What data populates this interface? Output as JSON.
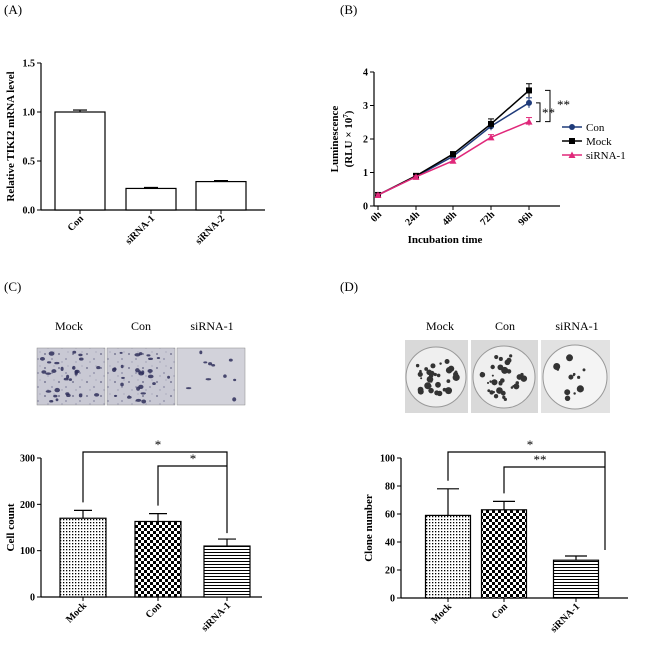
{
  "panels": {
    "A": "(A)",
    "B": "(B)",
    "C": "(C)",
    "D": "(D)"
  },
  "photo_c": {
    "labels": [
      "Mock",
      "Con",
      "siRNA-1"
    ]
  },
  "photo_d": {
    "labels": [
      "Mock",
      "Con",
      "siRNA-1"
    ]
  },
  "chart_data": [
    {
      "id": "A",
      "type": "bar",
      "categories": [
        "Con",
        "siRNA-1",
        "siRNA-2"
      ],
      "values": [
        1.0,
        0.22,
        0.29
      ],
      "errors": [
        0.02,
        0.01,
        0.01
      ],
      "ylabel": "Relative TIKI2 mRNA level",
      "xlabel": "",
      "ylim": [
        0,
        1.5
      ],
      "yticks": [
        "0.0",
        "0.5",
        "1.0",
        "1.5"
      ],
      "bar_fill": "white"
    },
    {
      "id": "B",
      "type": "line",
      "x": [
        "0h",
        "24h",
        "48h",
        "72h",
        "96h"
      ],
      "xlabel": "Incubation time",
      "ylabel": "Luminescence",
      "ylabel2": "(RLU × 10",
      "ylabel_exp": "7",
      "ylabel_close": ")",
      "ylim": [
        0,
        4
      ],
      "yticks": [
        "0",
        "1",
        "2",
        "3",
        "4"
      ],
      "series": [
        {
          "name": "Con",
          "values": [
            0.33,
            0.88,
            1.48,
            2.38,
            3.08
          ],
          "errors": [
            0.03,
            0.03,
            0.05,
            0.12,
            0.15
          ],
          "color": "#1f3b7a",
          "marker": "circle"
        },
        {
          "name": "Mock",
          "values": [
            0.33,
            0.9,
            1.55,
            2.45,
            3.45
          ],
          "errors": [
            0.03,
            0.03,
            0.05,
            0.15,
            0.2
          ],
          "color": "#000000",
          "marker": "square"
        },
        {
          "name": "siRNA-1",
          "values": [
            0.33,
            0.87,
            1.35,
            2.05,
            2.52
          ],
          "errors": [
            0.03,
            0.03,
            0.05,
            0.08,
            0.12
          ],
          "color": "#e0287a",
          "marker": "triangle"
        }
      ],
      "significance": [
        "**",
        "**"
      ]
    },
    {
      "id": "C",
      "type": "bar",
      "categories": [
        "Mock",
        "Con",
        "siRNA-1"
      ],
      "values": [
        170,
        163,
        110
      ],
      "errors": [
        17,
        17,
        15
      ],
      "ylabel": "Cell count",
      "xlabel": "",
      "ylim": [
        0,
        300
      ],
      "yticks": [
        "0",
        "100",
        "200",
        "300"
      ],
      "patterns": [
        "dots",
        "checker",
        "hlines"
      ],
      "significance": [
        "*",
        "*"
      ]
    },
    {
      "id": "D",
      "type": "bar",
      "categories": [
        "Mock",
        "Con",
        "siRNA-1"
      ],
      "values": [
        59,
        63,
        27
      ],
      "errors": [
        19,
        6,
        3
      ],
      "ylabel": "Clone number",
      "xlabel": "",
      "ylim": [
        0,
        100
      ],
      "yticks": [
        "0",
        "20",
        "40",
        "60",
        "80",
        "100"
      ],
      "patterns": [
        "dots",
        "checker",
        "hlines"
      ],
      "significance": [
        "*",
        "**"
      ]
    }
  ]
}
